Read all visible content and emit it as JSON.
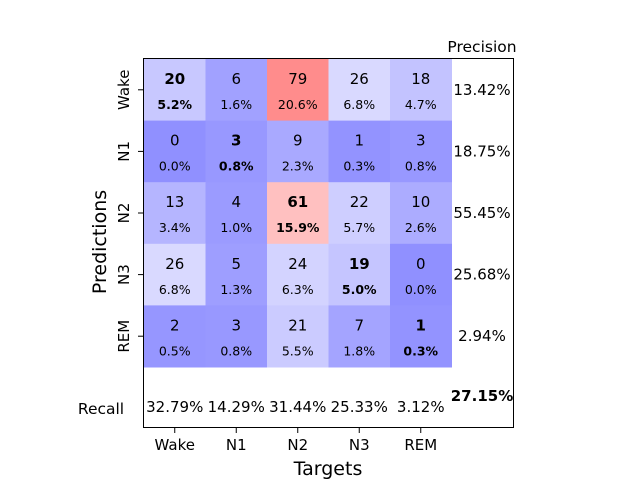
{
  "chart_data": {
    "type": "heatmap",
    "title": "",
    "xlabel": "Targets",
    "ylabel": "Predictions",
    "x_categories": [
      "Wake",
      "N1",
      "N2",
      "N3",
      "REM"
    ],
    "y_categories": [
      "Wake",
      "N1",
      "N2",
      "N3",
      "REM"
    ],
    "counts": [
      [
        20,
        6,
        79,
        26,
        18
      ],
      [
        0,
        3,
        9,
        1,
        3
      ],
      [
        13,
        4,
        61,
        22,
        10
      ],
      [
        26,
        5,
        24,
        19,
        0
      ],
      [
        2,
        3,
        21,
        7,
        1
      ]
    ],
    "percentages": [
      [
        "5.2%",
        "1.6%",
        "20.6%",
        "6.8%",
        "4.7%"
      ],
      [
        "0.0%",
        "0.8%",
        "2.3%",
        "0.3%",
        "0.8%"
      ],
      [
        "3.4%",
        "1.0%",
        "15.9%",
        "5.7%",
        "2.6%"
      ],
      [
        "6.8%",
        "1.3%",
        "6.3%",
        "5.0%",
        "0.0%"
      ],
      [
        "0.5%",
        "0.8%",
        "5.5%",
        "1.8%",
        "0.3%"
      ]
    ],
    "precision_label": "Precision",
    "precision": [
      "13.42%",
      "18.75%",
      "55.45%",
      "25.68%",
      "2.94%"
    ],
    "recall_label": "Recall",
    "recall": [
      "32.79%",
      "14.29%",
      "31.44%",
      "25.33%",
      "3.12%"
    ],
    "overall": "27.15%",
    "colormap": {
      "low": "#9090ff",
      "mid": "#ffffff",
      "high": "#ff8c8c"
    }
  }
}
